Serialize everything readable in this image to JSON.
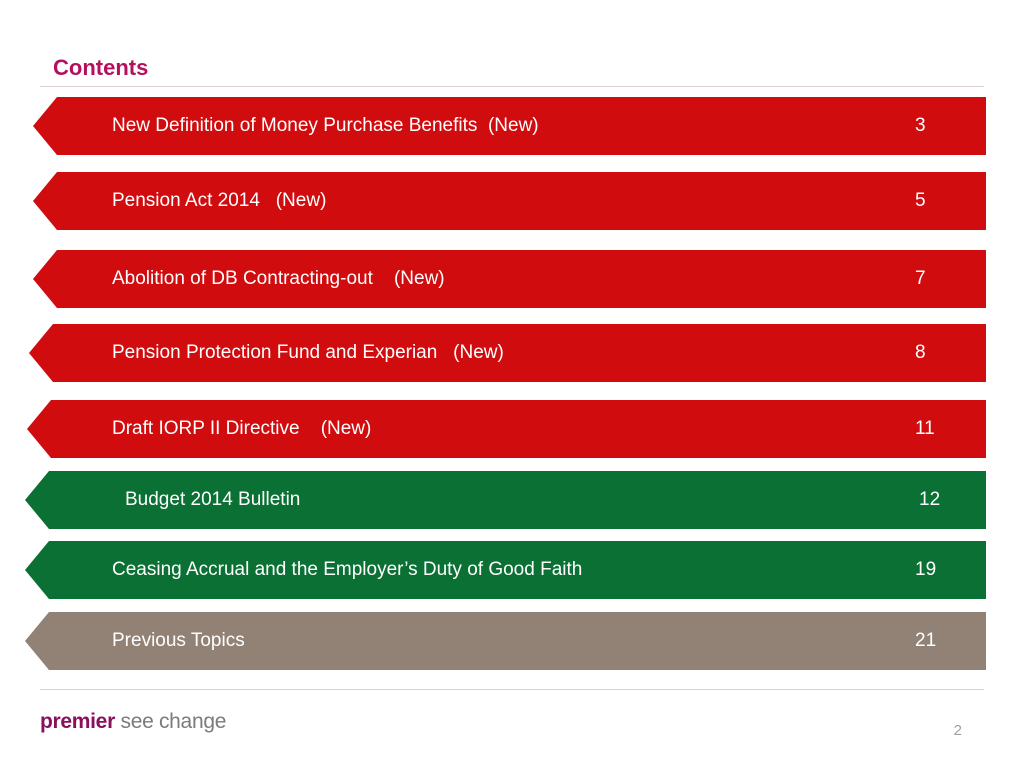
{
  "title": "Contents",
  "colors": {
    "title": "#b4105e",
    "red": "#d00c0f",
    "green": "#0b7033",
    "taupe": "#928276",
    "logo_brand": "#8a0f5e",
    "logo_tag": "#7b7b7b"
  },
  "items": [
    {
      "label": "New Definition of Money Purchase Benefits  (New)",
      "page": "3",
      "color": "red"
    },
    {
      "label": "Pension Act 2014   (New)",
      "page": "5",
      "color": "red"
    },
    {
      "label": "Abolition of DB Contracting-out    (New)",
      "page": "7",
      "color": "red"
    },
    {
      "label": "Pension Protection Fund and Experian   (New)",
      "page": "8",
      "color": "red"
    },
    {
      "label": "Draft IORP II Directive    (New)",
      "page": "11",
      "color": "red"
    },
    {
      "label": "Budget 2014 Bulletin",
      "page": "12",
      "color": "green"
    },
    {
      "label": "Ceasing Accrual and the Employer’s Duty of Good Faith",
      "page": "19",
      "color": "green"
    },
    {
      "label": "Previous Topics",
      "page": "21",
      "color": "taupe"
    }
  ],
  "logo": {
    "brand": "premier",
    "tagline": " see change"
  },
  "slide_number": "2"
}
